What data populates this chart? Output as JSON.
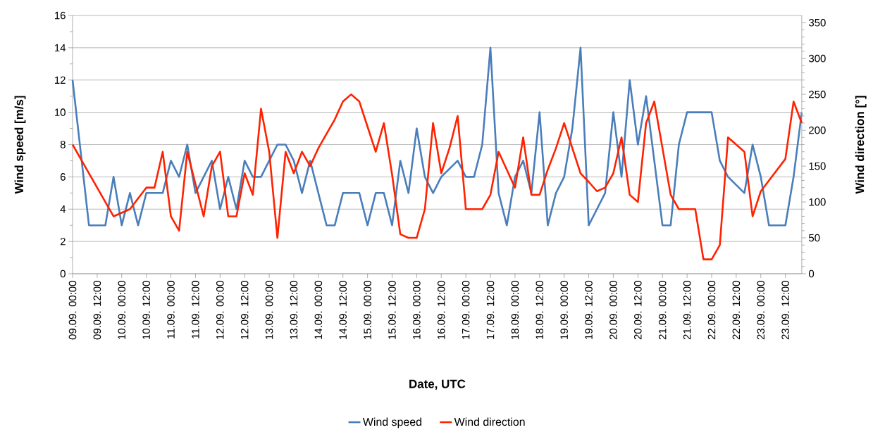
{
  "chart_data": {
    "type": "line",
    "xlabel": "Date, UTC",
    "ylabel": "Wind speed [m/s]",
    "y2label": "Wind direction [°]",
    "categories": [
      "09.09. 00:00",
      null,
      null,
      "09.09. 12:00",
      null,
      null,
      "10.09. 00:00",
      null,
      null,
      "10.09. 12:00",
      null,
      null,
      "11.09. 00:00",
      null,
      null,
      "11.09. 12:00",
      null,
      null,
      "12.09. 00:00",
      null,
      null,
      "12.09. 12:00",
      null,
      null,
      "13.09. 00:00",
      null,
      null,
      "13.09. 12:00",
      null,
      null,
      "14.09. 00:00",
      null,
      null,
      "14.09. 12:00",
      null,
      null,
      "15.09. 00:00",
      null,
      null,
      "15.09. 12:00",
      null,
      null,
      "16.09. 00:00",
      null,
      null,
      "16.09. 12:00",
      null,
      null,
      "17.09. 00:00",
      null,
      null,
      "17.09. 12:00",
      null,
      null,
      "18.09. 00:00",
      null,
      null,
      "18.09. 12:00",
      null,
      null,
      "19.09. 00:00",
      null,
      null,
      "19.09. 12:00",
      null,
      null,
      "20.09. 00:00",
      null,
      null,
      "20.09. 12:00",
      null,
      null,
      "21.09. 00:00",
      null,
      null,
      "21.09. 12:00",
      null,
      null,
      "22.09. 00:00",
      null,
      null,
      "22.09. 12:00",
      null,
      null,
      "23.09. 00:00",
      null,
      null,
      "23.09. 12:00",
      null,
      null
    ],
    "series": [
      {
        "name": "Wind speed",
        "color": "#4a7ebb",
        "values": [
          12,
          7.5,
          3,
          3,
          3,
          6,
          3,
          5,
          3,
          5,
          5,
          5,
          7,
          6,
          8,
          5,
          6,
          7,
          4,
          6,
          4,
          7,
          6,
          6,
          7,
          8,
          8,
          7,
          5,
          7,
          5,
          3,
          3,
          5,
          5,
          5,
          3,
          5,
          5,
          3,
          7,
          5,
          9,
          6,
          5,
          6,
          6.5,
          7,
          6,
          6,
          8,
          14,
          5,
          3,
          6,
          7,
          5,
          10,
          3,
          5,
          6,
          9,
          14,
          3,
          4,
          5,
          10,
          6,
          12,
          8,
          11,
          7,
          3,
          3,
          8,
          10,
          10,
          10,
          10,
          7,
          6,
          5.5,
          5,
          8,
          6,
          3,
          3,
          3,
          6,
          10
        ]
      },
      {
        "name": "Wind direction",
        "color": "#ff2200",
        "axis": "y2",
        "values": [
          180,
          160,
          140,
          120,
          100,
          80,
          85,
          90,
          105,
          120,
          120,
          170,
          80,
          60,
          170,
          125,
          80,
          150,
          170,
          80,
          80,
          140,
          110,
          230,
          170,
          50,
          170,
          140,
          170,
          150,
          175,
          195,
          215,
          240,
          250,
          240,
          205,
          170,
          210,
          138,
          55,
          50,
          50,
          90,
          210,
          140,
          175,
          220,
          90,
          90,
          90,
          110,
          170,
          145,
          120,
          190,
          110,
          110,
          145,
          175,
          210,
          175,
          140,
          128,
          115,
          120,
          140,
          190,
          110,
          100,
          210,
          240,
          175,
          110,
          90,
          90,
          90,
          20,
          20,
          40,
          190,
          180,
          170,
          80,
          115,
          130,
          145,
          160,
          240,
          210
        ]
      }
    ],
    "ylim": [
      0,
      16
    ],
    "yticks": [
      0,
      2,
      4,
      6,
      8,
      10,
      12,
      14,
      16
    ],
    "y2lim": [
      0,
      360
    ],
    "y2ticks": [
      0,
      50,
      100,
      150,
      200,
      250,
      300,
      350
    ],
    "grid": "y",
    "legend": "bottom"
  }
}
